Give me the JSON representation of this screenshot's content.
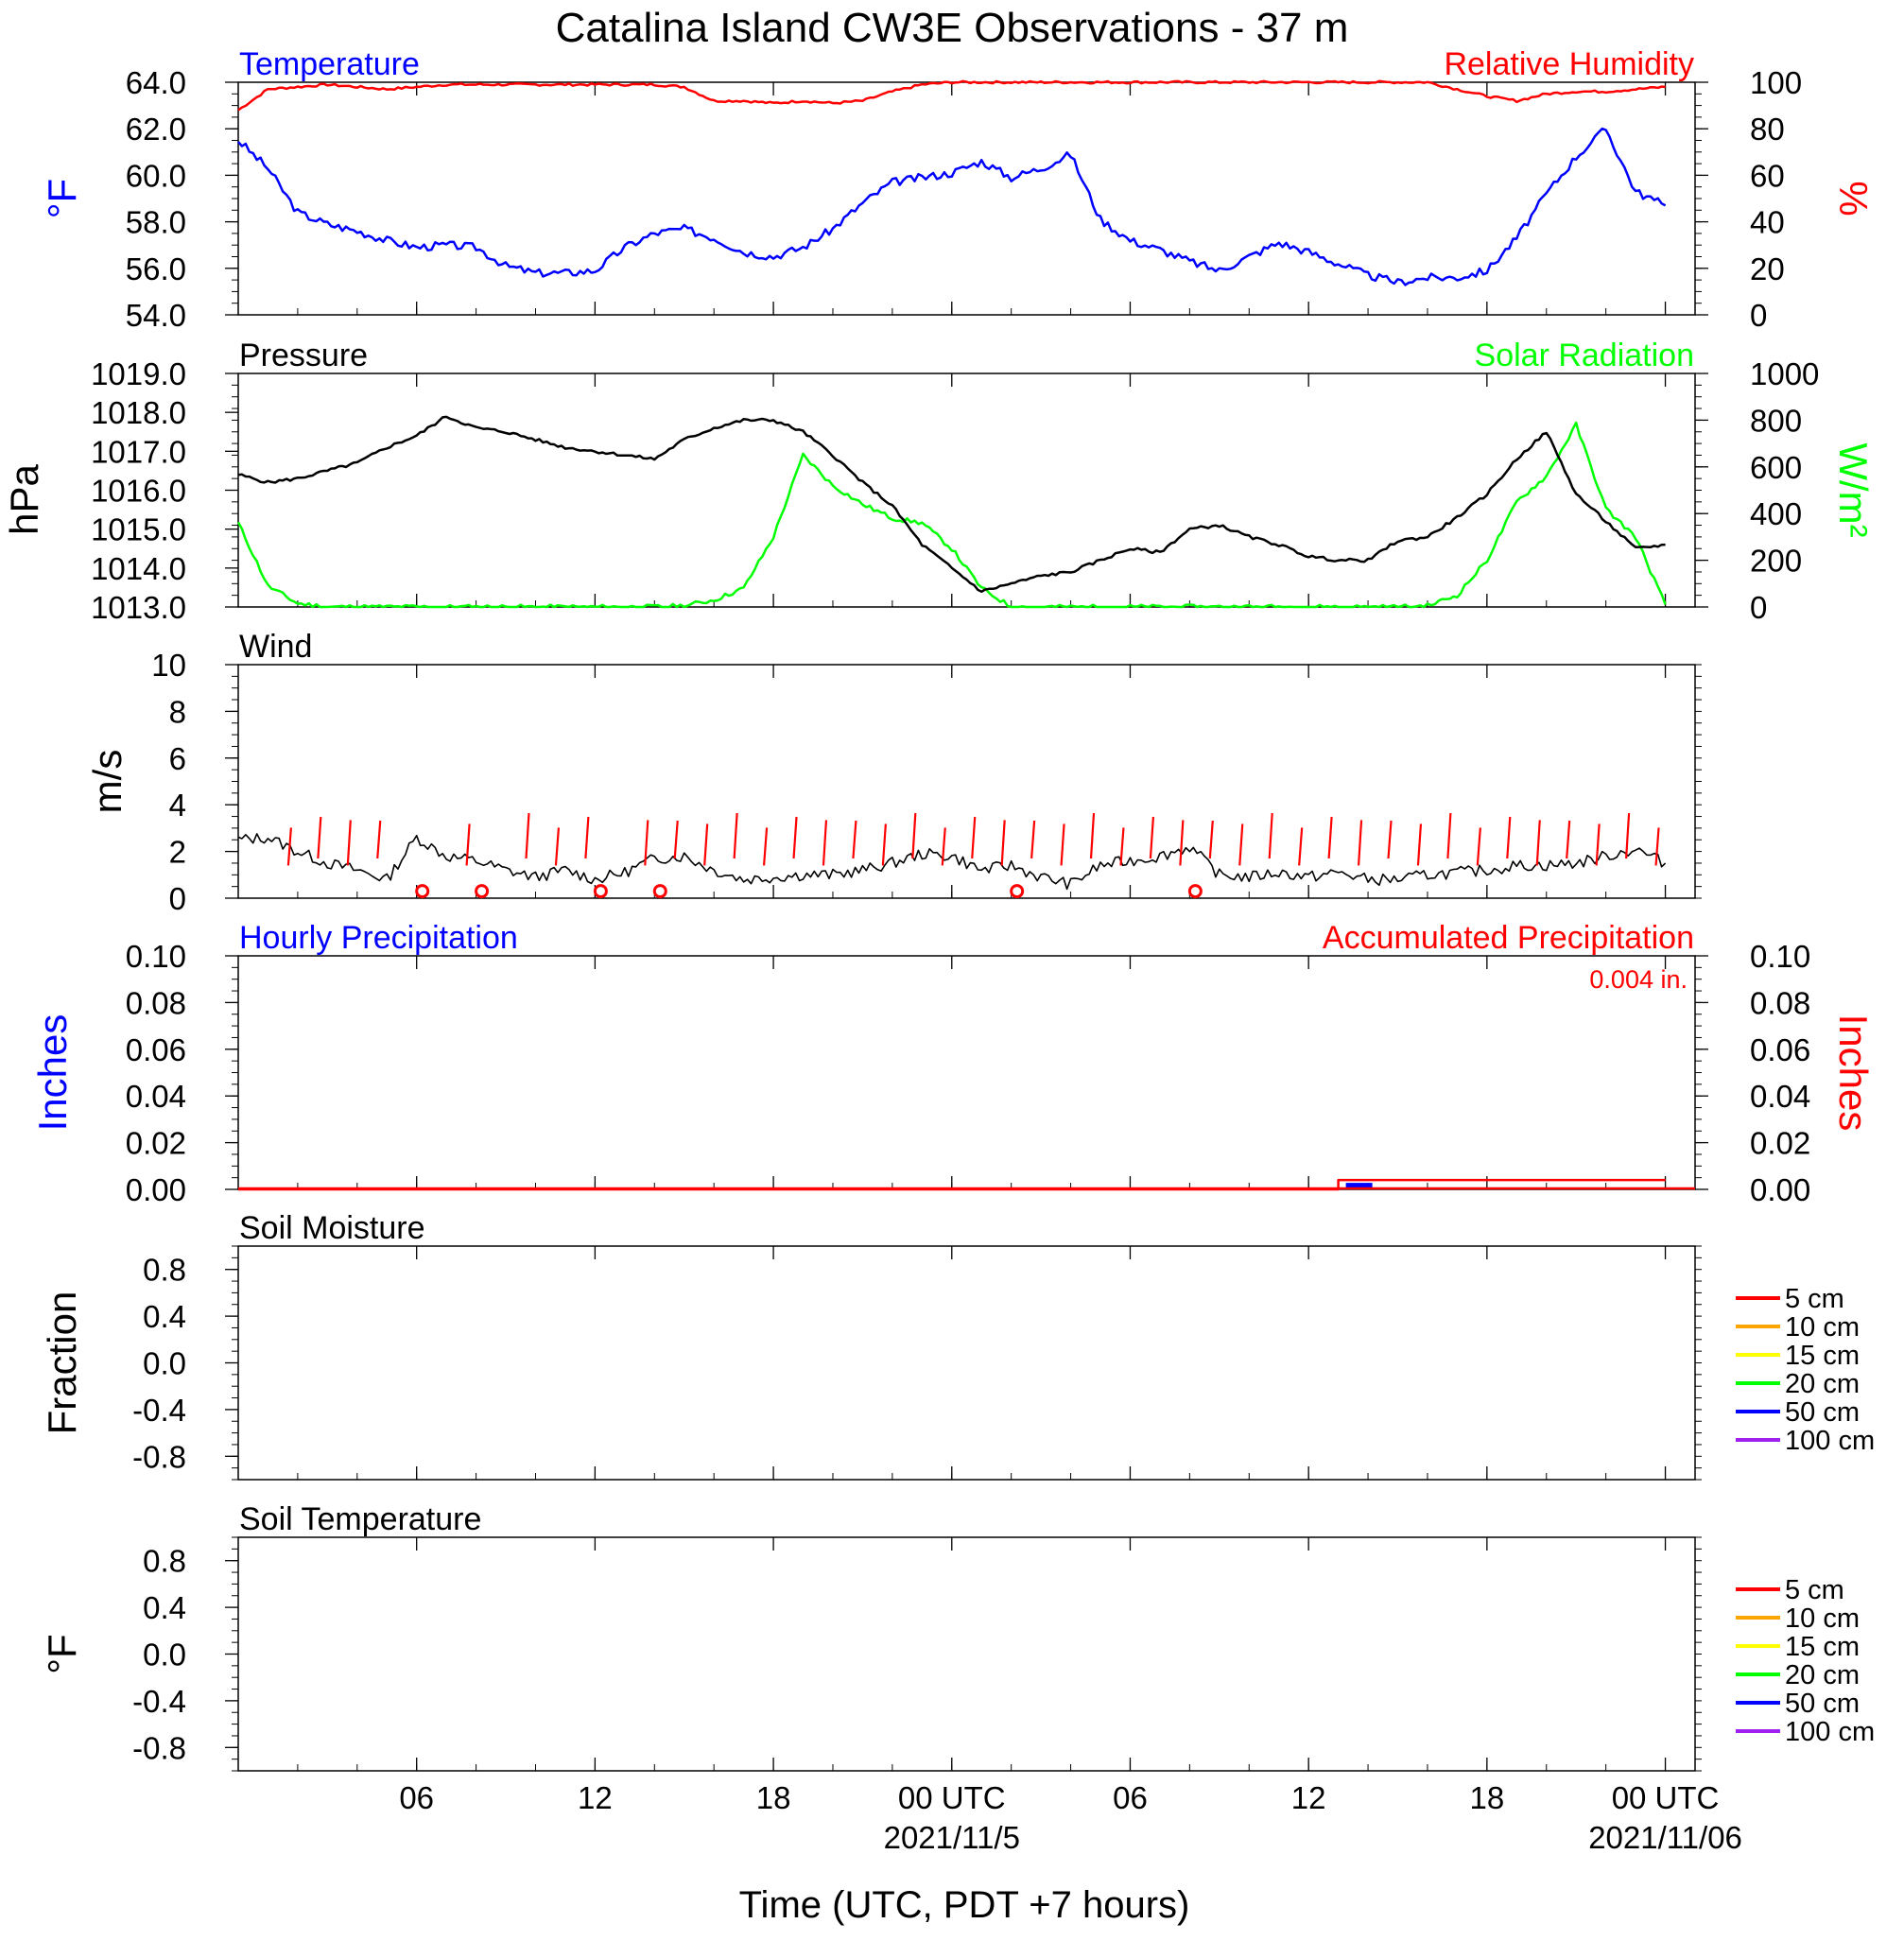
{
  "title": "Catalina Island CW3E Observations - 37 m",
  "xaxis": {
    "label": "Time (UTC, PDT +7 hours)",
    "ticks": [
      {
        "h": 6,
        "label": "06",
        "sub": ""
      },
      {
        "h": 12,
        "label": "12",
        "sub": ""
      },
      {
        "h": 18,
        "label": "18",
        "sub": ""
      },
      {
        "h": 24,
        "label": "00 UTC",
        "sub": "2021/11/5"
      },
      {
        "h": 30,
        "label": "06",
        "sub": ""
      },
      {
        "h": 36,
        "label": "12",
        "sub": ""
      },
      {
        "h": 42,
        "label": "18",
        "sub": ""
      },
      {
        "h": 48,
        "label": "00 UTC",
        "sub": "2021/11/06"
      }
    ]
  },
  "chart_data": [
    {
      "type": "line",
      "left_title": "Temperature",
      "right_title": "Relative Humidity",
      "ylabel_left": "°F",
      "ylabel_right": "%",
      "ylim_left": [
        54,
        64
      ],
      "ylim_right": [
        0,
        100
      ],
      "ticks_left": [
        "54.0",
        "56.0",
        "58.0",
        "60.0",
        "62.0",
        "64.0"
      ],
      "ticks_right": [
        "0",
        "20",
        "40",
        "60",
        "80",
        "100"
      ],
      "x_hours": [
        0,
        1,
        2,
        3,
        4,
        5,
        6,
        7,
        8,
        9,
        10,
        11,
        12,
        13,
        14,
        15,
        16,
        17,
        18,
        19,
        20,
        21,
        22,
        23,
        24,
        25,
        26,
        27,
        28,
        29,
        30,
        31,
        32,
        33,
        34,
        35,
        36,
        37,
        38,
        39,
        40,
        41,
        42,
        43,
        44,
        45,
        46,
        47,
        48
      ],
      "series": [
        {
          "name": "Temperature",
          "color": "#0000ff",
          "axis": "left",
          "values": [
            61.5,
            60.3,
            58.4,
            57.9,
            57.6,
            57.2,
            56.9,
            57.0,
            56.9,
            56.1,
            55.8,
            55.8,
            55.9,
            56.9,
            57.5,
            57.7,
            57.3,
            56.7,
            56.5,
            56.9,
            57.7,
            58.8,
            59.7,
            59.9,
            60.1,
            60.6,
            59.9,
            60.3,
            60.9,
            58.1,
            57.2,
            56.8,
            56.3,
            55.9,
            56.5,
            57.1,
            56.7,
            56.2,
            55.7,
            55.4,
            55.6,
            55.6,
            55.9,
            57.3,
            59.2,
            60.8,
            62.0,
            59.3,
            58.7
          ]
        },
        {
          "name": "Relative Humidity",
          "color": "#ff0000",
          "axis": "right",
          "values": [
            88,
            97,
            98,
            99,
            98,
            97,
            98,
            99,
            99,
            99,
            99,
            99,
            99,
            99,
            99,
            98,
            92,
            92,
            91,
            92,
            91,
            92,
            96,
            99,
            100,
            100,
            100,
            100,
            100,
            100,
            100,
            100,
            100,
            100,
            100,
            100,
            100,
            100,
            100,
            100,
            100,
            97,
            94,
            92,
            95,
            96,
            96,
            97,
            98
          ]
        }
      ]
    },
    {
      "type": "line",
      "left_title": "Pressure",
      "right_title": "Solar Radiation",
      "ylabel_left": "hPa",
      "ylabel_right": "W/m²",
      "ylim_left": [
        1013,
        1019
      ],
      "ylim_right": [
        0,
        1000
      ],
      "ticks_left": [
        "1013.0",
        "1014.0",
        "1015.0",
        "1016.0",
        "1017.0",
        "1018.0",
        "1019.0"
      ],
      "ticks_right": [
        "0",
        "200",
        "400",
        "600",
        "800",
        "1000"
      ],
      "x_hours": [
        0,
        1,
        2,
        3,
        4,
        5,
        6,
        7,
        8,
        9,
        10,
        11,
        12,
        13,
        14,
        15,
        16,
        17,
        18,
        19,
        20,
        21,
        22,
        23,
        24,
        25,
        26,
        27,
        28,
        29,
        30,
        31,
        32,
        33,
        34,
        35,
        36,
        37,
        38,
        39,
        40,
        41,
        42,
        43,
        44,
        45,
        46,
        47,
        48
      ],
      "series": [
        {
          "name": "Pressure",
          "color": "#000000",
          "axis": "left",
          "values": [
            1016.4,
            1016.2,
            1016.3,
            1016.5,
            1016.7,
            1017.1,
            1017.4,
            1017.9,
            1017.6,
            1017.5,
            1017.3,
            1017.1,
            1017.0,
            1016.9,
            1016.8,
            1017.3,
            1017.6,
            1017.8,
            1017.8,
            1017.5,
            1016.9,
            1016.2,
            1015.6,
            1014.6,
            1014.0,
            1013.4,
            1013.6,
            1013.8,
            1013.9,
            1014.2,
            1014.5,
            1014.4,
            1015.0,
            1015.1,
            1014.8,
            1014.6,
            1014.3,
            1014.2,
            1014.2,
            1014.7,
            1014.8,
            1015.3,
            1015.9,
            1016.8,
            1017.5,
            1015.9,
            1015.2,
            1014.5,
            1014.6
          ]
        },
        {
          "name": "Solar Radiation",
          "color": "#00ff00",
          "axis": "right",
          "values": [
            360,
            90,
            15,
            0,
            0,
            0,
            0,
            0,
            0,
            0,
            0,
            0,
            0,
            0,
            0,
            5,
            30,
            80,
            300,
            650,
            520,
            440,
            380,
            360,
            250,
            80,
            0,
            0,
            0,
            0,
            0,
            0,
            0,
            0,
            0,
            0,
            0,
            0,
            0,
            0,
            5,
            50,
            200,
            450,
            560,
            780,
            420,
            300,
            10
          ]
        }
      ]
    },
    {
      "type": "line",
      "left_title": "Wind",
      "ylabel_left": "m/s",
      "ylim_left": [
        0,
        10
      ],
      "ticks_left": [
        "0",
        "2",
        "4",
        "6",
        "8",
        "10"
      ],
      "x_hours": [
        0,
        1,
        2,
        3,
        4,
        5,
        6,
        7,
        8,
        9,
        10,
        11,
        12,
        13,
        14,
        15,
        16,
        17,
        18,
        19,
        20,
        21,
        22,
        23,
        24,
        25,
        26,
        27,
        28,
        29,
        30,
        31,
        32,
        33,
        34,
        35,
        36,
        37,
        38,
        39,
        40,
        41,
        42,
        43,
        44,
        45,
        46,
        47,
        48
      ],
      "series": [
        {
          "name": "Wind speed",
          "color": "#000000",
          "axis": "left",
          "values": [
            2.5,
            2.6,
            2.0,
            1.5,
            1.2,
            0.8,
            2.6,
            1.8,
            1.6,
            1.2,
            0.9,
            1.2,
            0.8,
            1.1,
            1.7,
            1.8,
            1.2,
            0.8,
            0.9,
            1.0,
            1.0,
            1.2,
            1.5,
            1.9,
            1.8,
            1.2,
            1.4,
            0.9,
            0.6,
            1.4,
            1.6,
            1.8,
            2.2,
            1.0,
            0.9,
            1.1,
            0.9,
            1.1,
            0.8,
            0.8,
            1.0,
            1.1,
            1.2,
            1.4,
            1.4,
            1.5,
            1.8,
            2.1,
            1.5
          ]
        }
      ],
      "barbs": {
        "color": "#ff0000",
        "hours": [
          2,
          3,
          4,
          5,
          8,
          10,
          11,
          12,
          14,
          15,
          16,
          17,
          18,
          19,
          20,
          21,
          22,
          23,
          24,
          25,
          26,
          27,
          28,
          29,
          30,
          31,
          32,
          33,
          34,
          35,
          36,
          37,
          38,
          39,
          40,
          41,
          42,
          43,
          44,
          45,
          46,
          47,
          48
        ],
        "calm_hours": [
          6,
          8,
          12,
          14,
          26,
          32
        ]
      }
    },
    {
      "type": "bar",
      "left_title": "Hourly Precipitation",
      "right_title": "Accumulated Precipitation",
      "annotation": "0.004 in.",
      "ylabel_left": "Inches",
      "ylabel_right": "Inches",
      "ylim_left": [
        0,
        0.1
      ],
      "ylim_right": [
        0,
        0.1
      ],
      "ticks_left": [
        "0.00",
        "0.02",
        "0.04",
        "0.06",
        "0.08",
        "0.10"
      ],
      "ticks_right": [
        "0.00",
        "0.02",
        "0.04",
        "0.06",
        "0.08",
        "0.10"
      ],
      "hourly": [
        {
          "h": 37,
          "value": 0.004
        }
      ],
      "accumulated": {
        "color": "#ff0000",
        "points": [
          [
            0,
            0
          ],
          [
            37,
            0
          ],
          [
            37,
            0.004
          ],
          [
            48,
            0.004
          ]
        ]
      }
    },
    {
      "type": "line",
      "left_title": "Soil Moisture",
      "ylabel_left": "Fraction",
      "ylim_left": [
        -1,
        1
      ],
      "ticks_left": [
        "-0.8",
        "-0.4",
        "0.0",
        "0.4",
        "0.8"
      ],
      "series": []
    },
    {
      "type": "line",
      "left_title": "Soil Temperature",
      "ylabel_left": "°F",
      "ylim_left": [
        -1,
        1
      ],
      "ticks_left": [
        "-0.8",
        "-0.4",
        "0.0",
        "0.4",
        "0.8"
      ],
      "series": []
    }
  ],
  "soil_legend": [
    {
      "label": "5 cm",
      "color": "#ff0000"
    },
    {
      "label": "10 cm",
      "color": "#ffa500"
    },
    {
      "label": "15 cm",
      "color": "#ffff00"
    },
    {
      "label": "20 cm",
      "color": "#00ff00"
    },
    {
      "label": "50 cm",
      "color": "#0000ff"
    },
    {
      "label": "100 cm",
      "color": "#a020f0"
    }
  ]
}
